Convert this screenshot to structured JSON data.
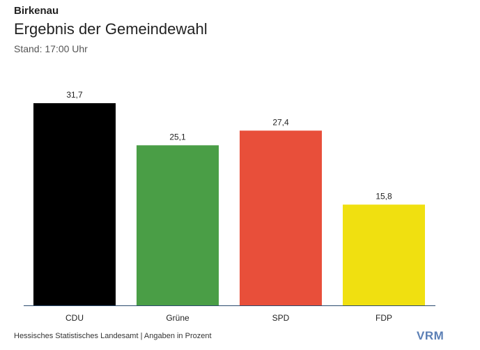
{
  "header": {
    "kicker": "Birkenau",
    "title": "Ergebnis der Gemeindewahl",
    "subtitle": "Stand: 17:00 Uhr"
  },
  "footer": {
    "source": "Hessisches Statistisches Landesamt | Angaben in Prozent",
    "logo": "VRM"
  },
  "chart_data": {
    "type": "bar",
    "categories": [
      "CDU",
      "Grüne",
      "SPD",
      "FDP"
    ],
    "values": [
      31.7,
      25.1,
      27.4,
      15.8
    ],
    "value_labels": [
      "31,7",
      "25,1",
      "27,4",
      "15,8"
    ],
    "colors": [
      "#000000",
      "#4a9e46",
      "#e84f3a",
      "#f0e010"
    ],
    "axis_color": "#2a4a6e",
    "ylim": [
      0,
      31.7
    ],
    "grid": false,
    "legend": "none"
  }
}
